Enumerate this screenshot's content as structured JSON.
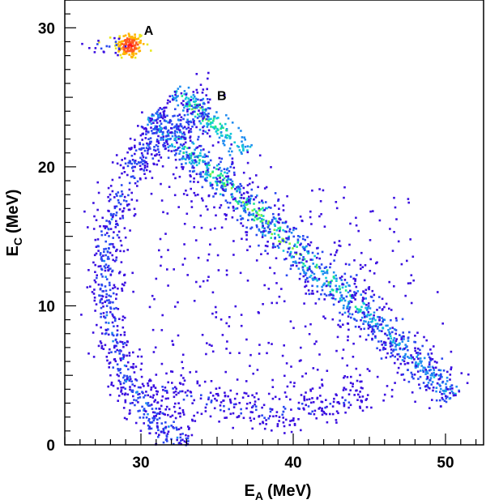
{
  "chart_data": {
    "type": "heatmap",
    "xlabel": {
      "main": "E",
      "sub": "A",
      "unit": "(MeV)"
    },
    "ylabel": {
      "main": "E",
      "sub": "C",
      "unit": "(MeV)"
    },
    "xlim": [
      25,
      52.5
    ],
    "ylim": [
      0,
      32
    ],
    "x_ticks": [
      30,
      40,
      50
    ],
    "y_ticks": [
      0,
      10,
      20,
      30
    ],
    "x_tick_labels": [
      "30",
      "40",
      "50"
    ],
    "y_tick_labels": [
      "0",
      "10",
      "20",
      "30"
    ],
    "x_minor_step": 1,
    "y_minor_step": 1,
    "grid": false,
    "legend": "none",
    "colormap": [
      "#3b0fe0",
      "#2a49f0",
      "#1f8cf0",
      "#12c8d8",
      "#1ee88a",
      "#7ef03a",
      "#e8e81e",
      "#ffb400",
      "#ff5a1e",
      "#ff1b1b"
    ],
    "annotations": [
      {
        "text": "A",
        "x": 30.2,
        "y": 29.5
      },
      {
        "text": "B",
        "x": 35.0,
        "y": 24.8
      }
    ],
    "regions": [
      {
        "name": "A",
        "kind": "blob",
        "center": [
          29.2,
          28.8
        ],
        "spread": [
          0.5,
          0.5
        ],
        "points": 140,
        "intensity": [
          6,
          9
        ]
      },
      {
        "name": "A-tail",
        "kind": "blob",
        "center": [
          27.8,
          28.8
        ],
        "spread": [
          0.8,
          0.4
        ],
        "points": 20,
        "intensity": [
          0,
          1
        ]
      },
      {
        "name": "B",
        "kind": "band",
        "from": [
          32.1,
          25.5
        ],
        "to": [
          37.0,
          21.2
        ],
        "width": 0.35,
        "points": 170,
        "intensity": [
          2,
          5
        ]
      },
      {
        "name": "main-band",
        "kind": "band",
        "from": [
          30.5,
          23.8
        ],
        "to": [
          50.5,
          3.6
        ],
        "width": 0.55,
        "points": 900,
        "intensity": [
          1,
          5
        ]
      },
      {
        "name": "main-band-halo",
        "kind": "band",
        "from": [
          30.5,
          23.5
        ],
        "to": [
          50.5,
          3.5
        ],
        "width": 1.2,
        "points": 450,
        "intensity": [
          0,
          1
        ]
      },
      {
        "name": "left-arc",
        "kind": "arc",
        "center": [
          35.2,
          12.0
        ],
        "radii": [
          7.6,
          12.2
        ],
        "angle_deg": [
          95,
          255
        ],
        "thickness": 1.0,
        "points": 900,
        "intensity": [
          0,
          2
        ]
      },
      {
        "name": "bottom-arc",
        "kind": "arc",
        "center": [
          38.5,
          13.0
        ],
        "radii": [
          12.5,
          10.5
        ],
        "angle_deg": [
          235,
          300
        ],
        "thickness": 0.8,
        "points": 260,
        "intensity": [
          0,
          1
        ]
      },
      {
        "name": "interior-scatter",
        "kind": "scatter",
        "x_range": [
          30.5,
          48.0
        ],
        "y_range": [
          3.0,
          19.0
        ],
        "points": 320,
        "intensity": [
          0,
          0
        ]
      }
    ]
  }
}
